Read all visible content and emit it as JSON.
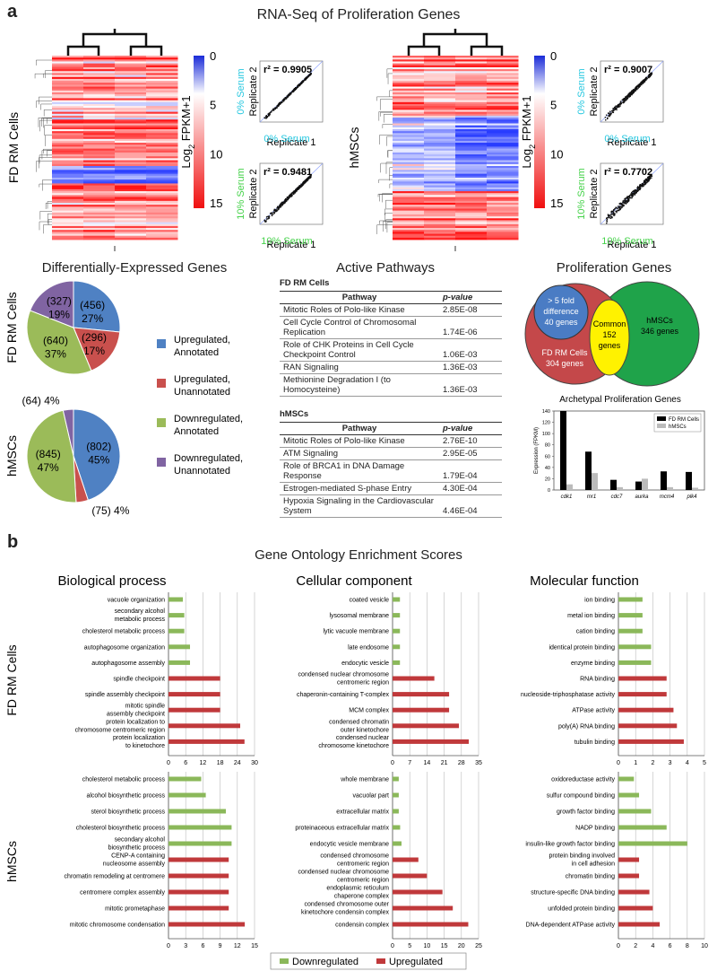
{
  "panel_a": {
    "letter": "a",
    "title": "RNA-Seq of Proliferation Genes",
    "heatmaps": [
      {
        "row_label": "FD RM Cells",
        "col1": [
          "0%",
          "Serum"
        ],
        "col2": [
          "10%",
          "Serum"
        ],
        "scatters": [
          {
            "r2": "r² = 0.9905",
            "xlabel": "Replicate 1",
            "ylabel": "Replicate 2",
            "serum": "0% Serum"
          },
          {
            "r2": "r² = 0.9481",
            "xlabel": "Replicate 1",
            "ylabel": "Replicate 2",
            "serum": "10% Serum"
          }
        ]
      },
      {
        "row_label": "hMSCs",
        "col1": [
          "0%",
          "Serum"
        ],
        "col2": [
          "10%",
          "Serum"
        ],
        "scatters": [
          {
            "r2": "r² = 0.9007",
            "xlabel": "Replicate 1",
            "ylabel": "Replicate 2",
            "serum": "0% Serum"
          },
          {
            "r2": "r² = 0.7702",
            "xlabel": "Replicate 1",
            "ylabel": "Replicate 2",
            "serum": "10% Serum"
          }
        ]
      }
    ],
    "colorbar": {
      "label": "Log2 FPKM+1",
      "ticks": [
        "0",
        "5",
        "10",
        "15"
      ]
    },
    "deg": {
      "title": "Differentially-Expressed Genes",
      "legend": [
        {
          "text": "Upregulated,\nAnnotated",
          "color": "#4f81c3"
        },
        {
          "text": "Upregulated,\nUnannotated",
          "color": "#c9504d"
        },
        {
          "text": "Downregulated,\nAnnotated",
          "color": "#9bbb59"
        },
        {
          "text": "Downregulated,\nUnannotated",
          "color": "#8064a2"
        }
      ],
      "pies": [
        {
          "row_label": "FD RM Cells",
          "slices": [
            {
              "count": 456,
              "label1": "(456)",
              "label2": "27%",
              "color": "#4f81c3"
            },
            {
              "count": 296,
              "label1": "(296)",
              "label2": "17%",
              "color": "#c9504d"
            },
            {
              "count": 640,
              "label1": "(640)",
              "label2": "37%",
              "color": "#9bbb59"
            },
            {
              "count": 327,
              "label1": "(327)",
              "label2": "19%",
              "color": "#8064a2"
            }
          ]
        },
        {
          "row_label": "hMSCs",
          "slices": [
            {
              "count": 802,
              "label1": "(802)",
              "label2": "45%",
              "color": "#4f81c3"
            },
            {
              "count": 75,
              "label1": "(75) 4%",
              "label2": "",
              "color": "#c9504d"
            },
            {
              "count": 845,
              "label1": "(845)",
              "label2": "47%",
              "color": "#9bbb59"
            },
            {
              "count": 64,
              "label1": "(64) 4%",
              "label2": "",
              "color": "#8064a2"
            }
          ]
        }
      ]
    },
    "pathways": {
      "title": "Active Pathways",
      "header_pathway": "Pathway",
      "header_pvalue": "p-value",
      "groups": [
        {
          "name": "FD RM Cells",
          "rows": [
            {
              "pathway": "Mitotic Roles of Polo-like Kinase",
              "pvalue": "2.85E-08"
            },
            {
              "pathway": "Cell Cycle Control of Chromosomal Replication",
              "pvalue": "1.74E-06"
            },
            {
              "pathway": "Role of CHK Proteins in Cell Cycle Checkpoint Control",
              "pvalue": "1.06E-03"
            },
            {
              "pathway": "RAN Signaling",
              "pvalue": "1.36E-03"
            },
            {
              "pathway": "Methionine Degradation I (to Homocysteine)",
              "pvalue": "1.36E-03"
            }
          ]
        },
        {
          "name": "hMSCs",
          "rows": [
            {
              "pathway": "Mitotic Roles of Polo-like Kinase",
              "pvalue": "2.76E-10"
            },
            {
              "pathway": "ATM Signaling",
              "pvalue": "2.95E-05"
            },
            {
              "pathway": "Role of BRCA1 in DNA Damage Response",
              "pvalue": "1.79E-04"
            },
            {
              "pathway": "Estrogen-mediated S-phase Entry",
              "pvalue": "4.30E-04"
            },
            {
              "pathway": "Hypoxia Signaling in the Cardiovascular System",
              "pvalue": "4.46E-04"
            }
          ]
        }
      ]
    },
    "proliferation": {
      "title": "Proliferation Genes",
      "venn": {
        "fold": [
          "> 5 fold",
          "difference",
          "40 genes"
        ],
        "fd": [
          "FD RM Cells",
          "304 genes"
        ],
        "common": [
          "Common",
          "152",
          "genes"
        ],
        "hmsc": [
          "hMSCs",
          "346 genes"
        ]
      },
      "archetypal": {
        "title": "Archetypal Proliferation Genes",
        "ylabel": "Expression (FPKM)",
        "yticks": [
          0,
          20,
          40,
          60,
          80,
          100,
          120,
          140
        ],
        "ylim": [
          0,
          140
        ],
        "legend": [
          "FD RM Cells",
          "hMSCs"
        ],
        "categories": [
          "cdk1",
          "mr1",
          "cdc7",
          "aurka",
          "mcm4",
          "plk4"
        ],
        "fd": [
          150,
          68,
          18,
          15,
          33,
          32
        ],
        "hmsc": [
          10,
          30,
          5,
          20,
          5,
          4
        ]
      }
    }
  },
  "panel_b": {
    "letter": "b",
    "title": "Gene Ontology Enrichment Scores",
    "col_titles": [
      "Biological process",
      "Cellular component",
      "Molecular function"
    ],
    "row_labels": [
      "FD RM Cells",
      "hMSCs"
    ],
    "legend": [
      {
        "text": "Downregulated",
        "color": "#8bb85a"
      },
      {
        "text": "Upregulated",
        "color": "#c0393b"
      }
    ],
    "charts": [
      {
        "max": 30,
        "ticks": [
          "0",
          "6",
          "12",
          "18",
          "24",
          "30"
        ],
        "green": [
          {
            "label": "vacuole organization",
            "value": 5
          },
          {
            "label": "secondary alcohol metabolic process",
            "value": 5.5
          },
          {
            "label": "cholesterol metabolic process",
            "value": 5.5
          },
          {
            "label": "autophagosome organization",
            "value": 7.5
          },
          {
            "label": "autophagosome assembly",
            "value": 7.5
          }
        ],
        "red": [
          {
            "label": "spindle checkpoint",
            "value": 18
          },
          {
            "label": "spindle assembly checkpoint",
            "value": 18
          },
          {
            "label": "mitotic spindle assembly checkpoint",
            "value": 18
          },
          {
            "label": "protein localization to chromosome centromeric region",
            "value": 25
          },
          {
            "label": "protein localization to kinetochore",
            "value": 26.5
          }
        ]
      },
      {
        "max": 35,
        "ticks": [
          "0",
          "7",
          "14",
          "21",
          "28",
          "35"
        ],
        "green": [
          {
            "label": "coated vesicle",
            "value": 3
          },
          {
            "label": "lysosomal membrane",
            "value": 3
          },
          {
            "label": "lytic vacuole membrane",
            "value": 3
          },
          {
            "label": "late endosome",
            "value": 3
          },
          {
            "label": "endocytic vesicle",
            "value": 3
          }
        ],
        "red": [
          {
            "label": "condensed nuclear chromosome centromeric region",
            "value": 17
          },
          {
            "label": "chaperonin-containing T-complex",
            "value": 23
          },
          {
            "label": "MCM complex",
            "value": 23
          },
          {
            "label": "condensed chromatin outer kinetochore",
            "value": 27
          },
          {
            "label": "condensed nuclear chromosome kinetochore",
            "value": 31
          }
        ]
      },
      {
        "max": 5,
        "ticks": [
          "0",
          "1",
          "2",
          "3",
          "4",
          "5"
        ],
        "green": [
          {
            "label": "ion binding",
            "value": 1.4
          },
          {
            "label": "metal ion binding",
            "value": 1.4
          },
          {
            "label": "cation binding",
            "value": 1.4
          },
          {
            "label": "identical protein binding",
            "value": 1.9
          },
          {
            "label": "enzyme binding",
            "value": 1.9
          }
        ],
        "red": [
          {
            "label": "RNA binding",
            "value": 2.8
          },
          {
            "label": "nucleoside-triphosphatase activity",
            "value": 2.8
          },
          {
            "label": "ATPase activity",
            "value": 3.2
          },
          {
            "label": "poly(A) RNA binding",
            "value": 3.4
          },
          {
            "label": "tubulin binding",
            "value": 3.8
          }
        ]
      },
      {
        "max": 15,
        "ticks": [
          "0",
          "3",
          "6",
          "9",
          "12",
          "15"
        ],
        "green": [
          {
            "label": "cholesterol metabolic process",
            "value": 5.7
          },
          {
            "label": "alcohol biosynthetic process",
            "value": 6.5
          },
          {
            "label": "sterol biosynthetic process",
            "value": 10
          },
          {
            "label": "cholesterol biosynthetic process",
            "value": 11
          },
          {
            "label": "secondary alcohol biosynthetic process",
            "value": 11
          }
        ],
        "red": [
          {
            "label": "CENP-A containing nucleosome assembly",
            "value": 10.5
          },
          {
            "label": "chromatin remodeling at centromere",
            "value": 10.5
          },
          {
            "label": "centromere complex assembly",
            "value": 10.5
          },
          {
            "label": "mitotic prometaphase",
            "value": 10.5
          },
          {
            "label": "mitotic chromosome condensation",
            "value": 13.3
          }
        ]
      },
      {
        "max": 25,
        "ticks": [
          "0",
          "5",
          "10",
          "15",
          "20",
          "25"
        ],
        "green": [
          {
            "label": "whole membrane",
            "value": 1.8
          },
          {
            "label": "vacuolar part",
            "value": 1.8
          },
          {
            "label": "extracellular matrix",
            "value": 1.8
          },
          {
            "label": "proteinaceous extracellular matrix",
            "value": 2.2
          },
          {
            "label": "endocytic vesicle membrane",
            "value": 2.6
          }
        ],
        "red": [
          {
            "label": "condensed chromosome centromeric region",
            "value": 7.5
          },
          {
            "label": "condensed nuclear chromosome centromeric region",
            "value": 10
          },
          {
            "label": "endoplasmic reticulum chaperone complex",
            "value": 14.5
          },
          {
            "label": "condensed chromosome outer kinetochore condensin complex",
            "value": 17.5
          },
          {
            "label": "condensin complex",
            "value": 22
          }
        ]
      },
      {
        "max": 10,
        "ticks": [
          "0",
          "2",
          "4",
          "6",
          "8",
          "10"
        ],
        "green": [
          {
            "label": "oxidoreductase activity",
            "value": 1.8
          },
          {
            "label": "sulfur compound binding",
            "value": 2.4
          },
          {
            "label": "growth factor binding",
            "value": 3.8
          },
          {
            "label": "NADP binding",
            "value": 5.6
          },
          {
            "label": "insulin-like growth factor binding",
            "value": 8
          }
        ],
        "red": [
          {
            "label": "protein binding involved in cell adhesion",
            "value": 2.4
          },
          {
            "label": "chromatin binding",
            "value": 2.4
          },
          {
            "label": "structure-specific DNA binding",
            "value": 3.6
          },
          {
            "label": "unfolded protein binding",
            "value": 4
          },
          {
            "label": "DNA-dependent ATPase activity",
            "value": 4.8
          }
        ]
      }
    ]
  }
}
